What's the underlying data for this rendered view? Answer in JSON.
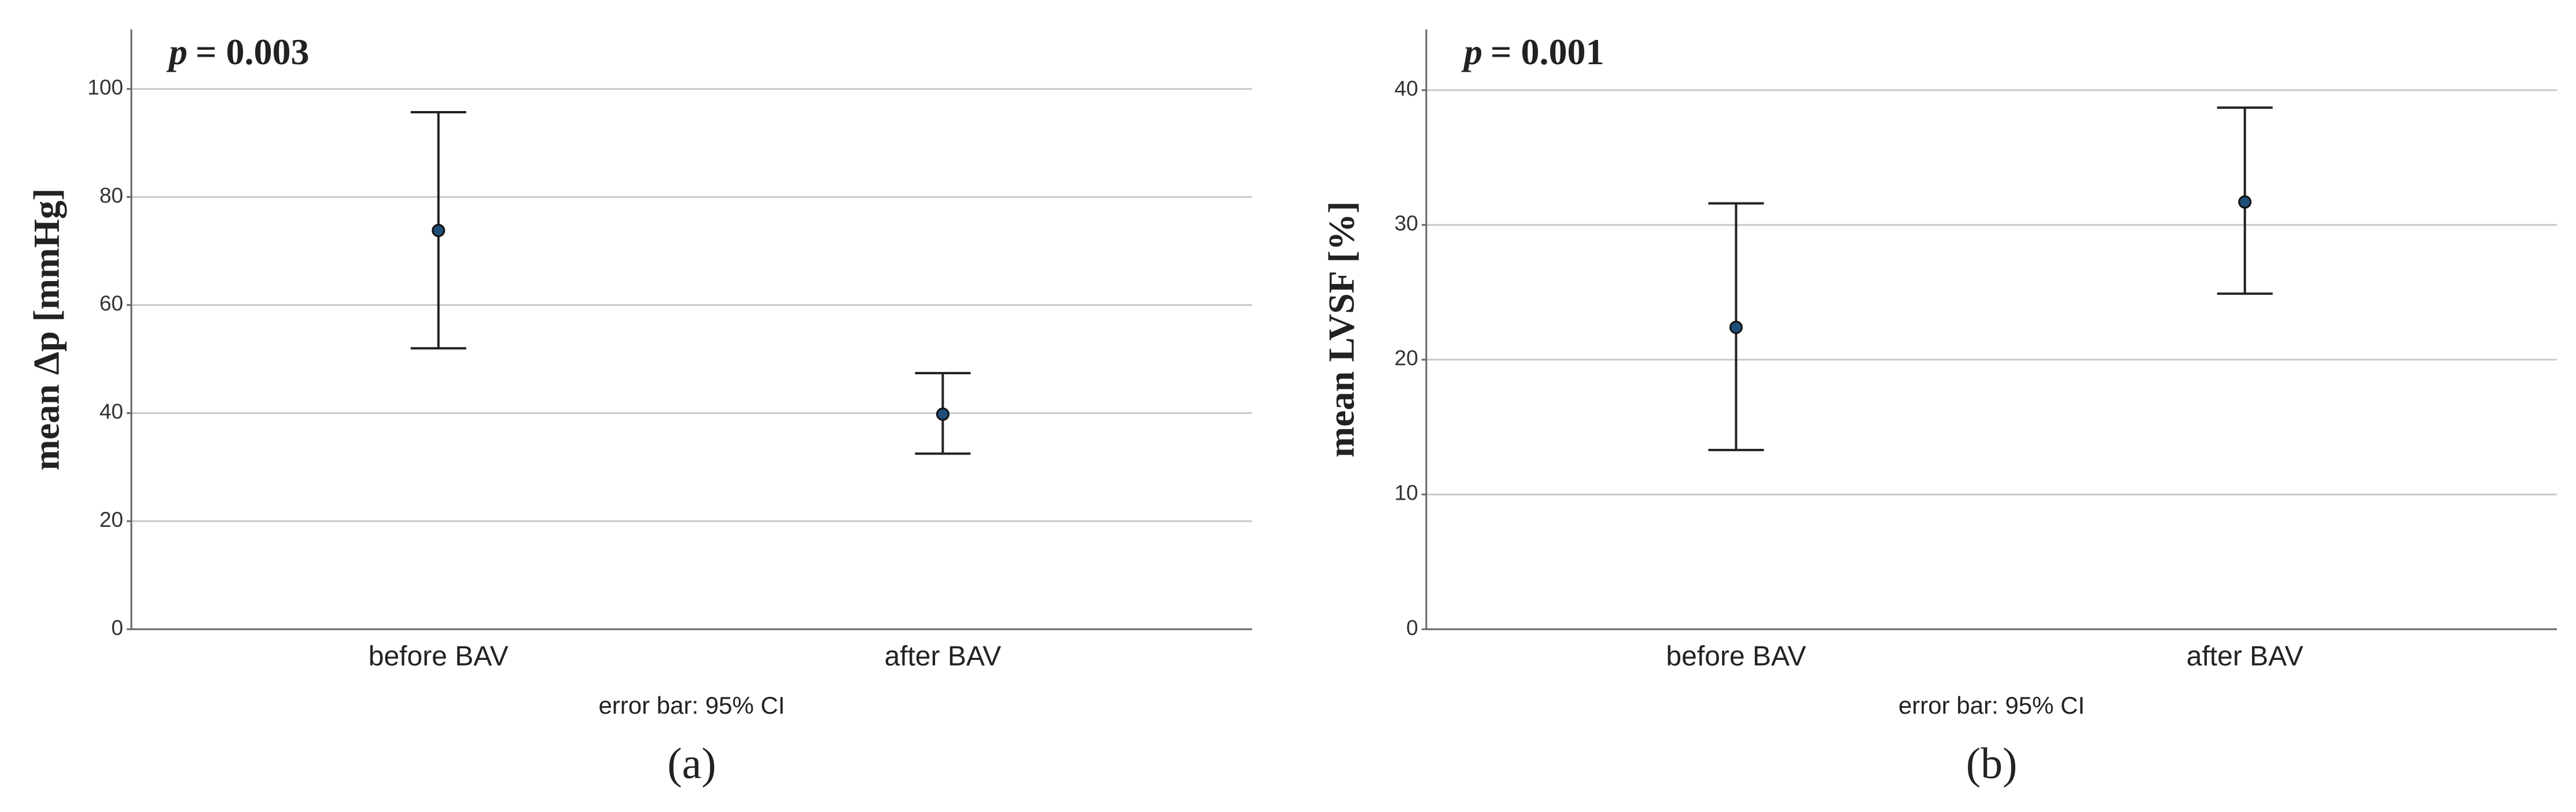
{
  "chart_data": [
    {
      "type": "errorbar",
      "annotation_var": "p",
      "annotation": "= 0.003",
      "ylabel": "mean Δp [mmHg]",
      "xlabel": "error bar: 95% CI",
      "panel": "(a)",
      "categories": [
        "before BAV",
        "after BAV"
      ],
      "values": [
        73.8,
        39.8
      ],
      "lower": [
        52,
        32.5
      ],
      "upper": [
        95.7,
        47.4
      ],
      "color": "#1f4e79",
      "ylim": [
        0,
        111
      ],
      "yticks": [
        0,
        20,
        40,
        60,
        80,
        100
      ],
      "grid": true
    },
    {
      "type": "errorbar",
      "annotation_var": "p",
      "annotation": "= 0.001",
      "ylabel": "mean LVSF [%]",
      "xlabel": "error bar: 95% CI",
      "panel": "(b)",
      "categories": [
        "before BAV",
        "after BAV"
      ],
      "values": [
        22.4,
        31.7
      ],
      "lower": [
        13.3,
        24.9
      ],
      "upper": [
        31.6,
        38.7
      ],
      "color": "#1f4e79",
      "ylim": [
        0,
        44.5
      ],
      "yticks": [
        0,
        10,
        20,
        30,
        40
      ],
      "grid": true
    }
  ]
}
